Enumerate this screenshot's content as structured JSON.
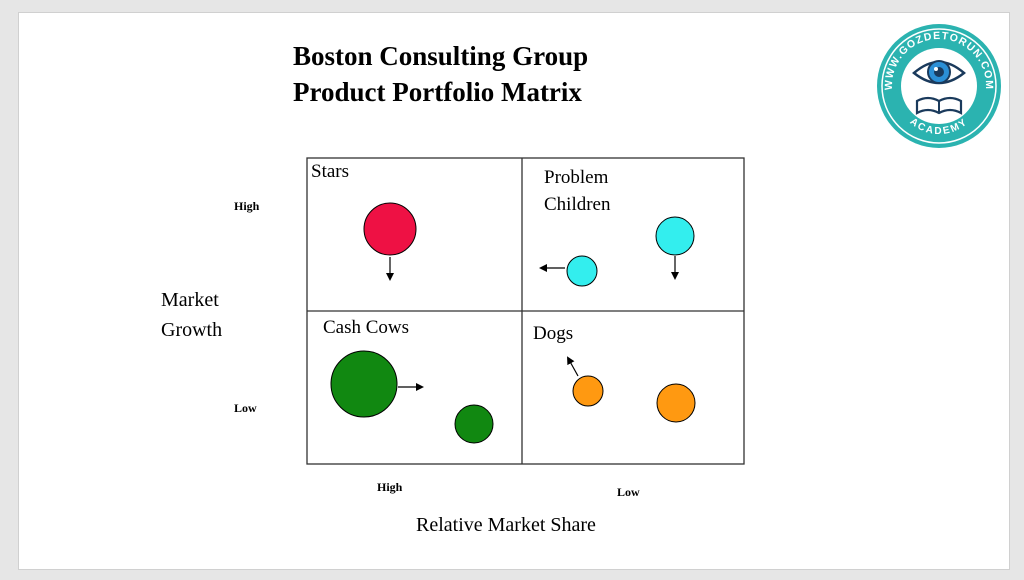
{
  "title": [
    "Boston Consulting Group",
    "Product Portfolio Matrix"
  ],
  "axes": {
    "y_label": [
      "Market",
      "Growth"
    ],
    "y_high": "High",
    "y_low": "Low",
    "x_label": "Relative Market  Share",
    "x_high": "High",
    "x_low": "Low"
  },
  "quadrants": {
    "stars": "Stars",
    "problem_children": [
      "Problem",
      "Children"
    ],
    "cash_cows": "Cash Cows",
    "dogs": "Dogs"
  },
  "logo": {
    "top_text": "WWW.GOZDETORUN.COM",
    "bottom_text": "ACADEMY"
  },
  "colors": {
    "stars": "#ee1144",
    "problem_children": "#33eeee",
    "cash_cows": "#118811",
    "dogs": "#ff9911",
    "logo_teal": "#2bb3b0"
  }
}
